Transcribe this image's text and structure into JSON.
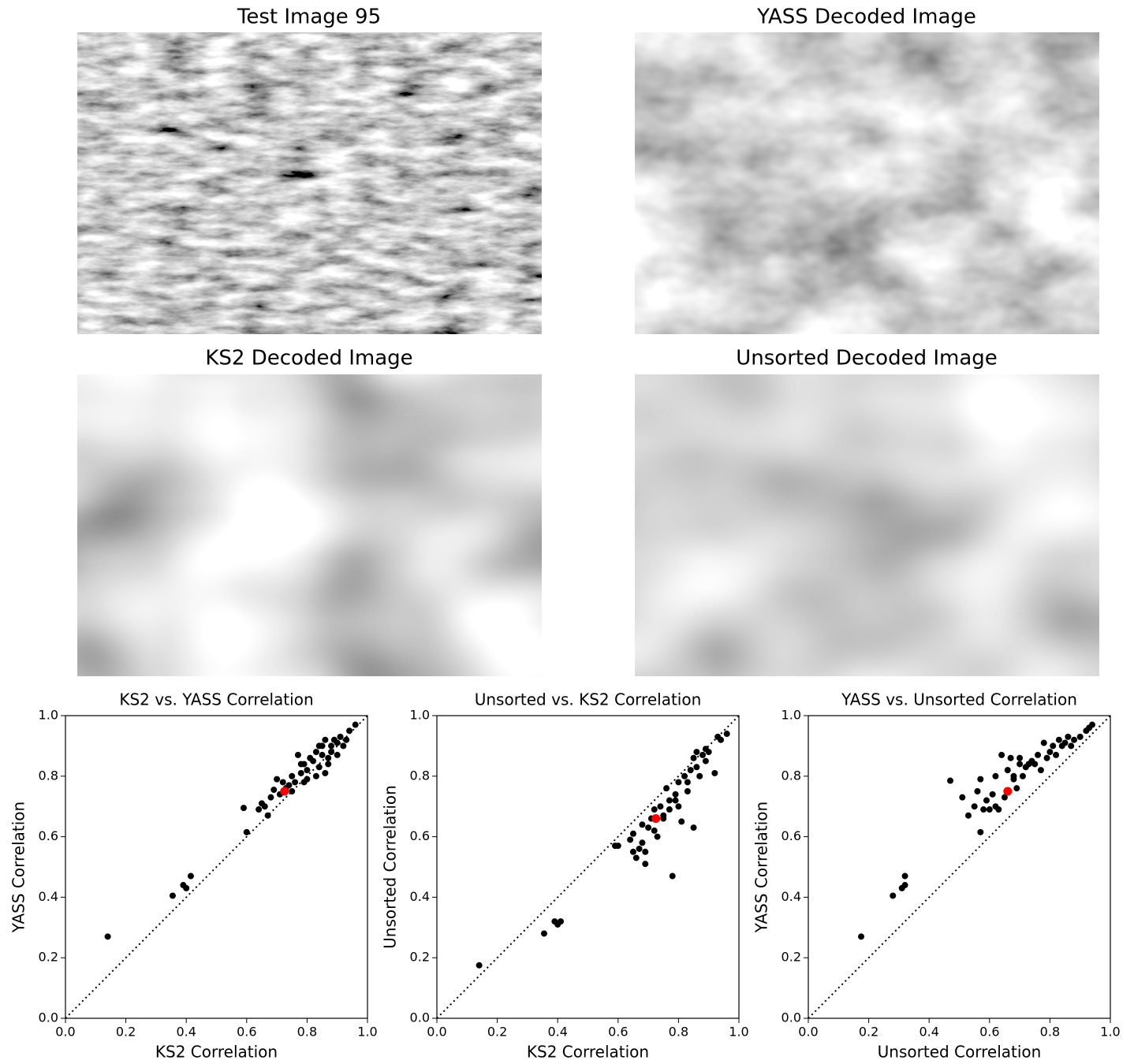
{
  "images": [
    {
      "title": "Test Image 95"
    },
    {
      "title": "YASS Decoded Image"
    },
    {
      "title": "KS2 Decoded Image"
    },
    {
      "title": "Unsorted Decoded Image"
    }
  ],
  "chart_data": [
    {
      "type": "scatter",
      "title": "KS2 vs. YASS Correlation",
      "xlabel": "KS2 Correlation",
      "ylabel": "YASS Correlation",
      "xlim": [
        0,
        1
      ],
      "ylim": [
        0,
        1
      ],
      "xticks": [
        {
          "value": 0,
          "label": "0.0"
        },
        0.2,
        0.4,
        0.6,
        0.8,
        {
          "value": 1,
          "label": "1.0"
        }
      ],
      "yticks": [
        {
          "value": 0,
          "label": "0.0"
        },
        0.2,
        0.4,
        0.6,
        0.8,
        {
          "value": 1,
          "label": "1.0"
        }
      ],
      "series": [
        {
          "color": "#000000",
          "x": [
            0.14,
            0.355,
            0.39,
            0.4,
            0.415,
            0.59,
            0.6,
            0.64,
            0.65,
            0.66,
            0.67,
            0.68,
            0.69,
            0.7,
            0.71,
            0.72,
            0.73,
            0.74,
            0.75,
            0.76,
            0.77,
            0.78,
            0.79,
            0.8,
            0.8,
            0.81,
            0.82,
            0.83,
            0.84,
            0.85,
            0.85,
            0.86,
            0.86,
            0.87,
            0.88,
            0.88,
            0.89,
            0.9,
            0.91,
            0.92,
            0.93,
            0.94,
            0.96,
            0.87,
            0.83,
            0.78,
            0.75,
            0.9,
            0.84,
            0.79
          ],
          "values": [
            0.27,
            0.405,
            0.44,
            0.43,
            0.47,
            0.695,
            0.615,
            0.69,
            0.71,
            0.7,
            0.67,
            0.73,
            0.755,
            0.79,
            0.74,
            0.78,
            0.76,
            0.77,
            0.8,
            0.78,
            0.87,
            0.81,
            0.84,
            0.79,
            0.82,
            0.86,
            0.85,
            0.88,
            0.83,
            0.87,
            0.9,
            0.81,
            0.92,
            0.86,
            0.9,
            0.88,
            0.92,
            0.91,
            0.93,
            0.9,
            0.92,
            0.95,
            0.97,
            0.84,
            0.8,
            0.84,
            0.75,
            0.87,
            0.9,
            0.78
          ]
        },
        {
          "color": "#ff0000",
          "x": [
            0.725
          ],
          "values": [
            0.75
          ]
        }
      ]
    },
    {
      "type": "scatter",
      "title": "Unsorted vs. KS2 Correlation",
      "xlabel": "KS2 Correlation",
      "ylabel": "Unsorted Correlation",
      "xlim": [
        0,
        1
      ],
      "ylim": [
        0,
        1
      ],
      "xticks": [
        {
          "value": 0,
          "label": "0.0"
        },
        0.2,
        0.4,
        0.6,
        0.8,
        {
          "value": 1,
          "label": "1.0"
        }
      ],
      "yticks": [
        {
          "value": 0,
          "label": "0.0"
        },
        0.2,
        0.4,
        0.6,
        0.8,
        {
          "value": 1,
          "label": "1.0"
        }
      ],
      "series": [
        {
          "color": "#000000",
          "x": [
            0.14,
            0.355,
            0.39,
            0.4,
            0.41,
            0.59,
            0.6,
            0.64,
            0.65,
            0.65,
            0.66,
            0.67,
            0.68,
            0.69,
            0.69,
            0.7,
            0.71,
            0.72,
            0.73,
            0.74,
            0.75,
            0.76,
            0.77,
            0.78,
            0.79,
            0.8,
            0.8,
            0.81,
            0.82,
            0.83,
            0.84,
            0.85,
            0.85,
            0.86,
            0.87,
            0.88,
            0.89,
            0.89,
            0.9,
            0.92,
            0.93,
            0.94,
            0.96,
            0.75,
            0.77,
            0.83,
            0.86,
            0.79,
            0.72,
            0.68
          ],
          "values": [
            0.175,
            0.28,
            0.32,
            0.31,
            0.32,
            0.57,
            0.57,
            0.59,
            0.55,
            0.61,
            0.53,
            0.56,
            0.64,
            0.55,
            0.51,
            0.63,
            0.66,
            0.69,
            0.6,
            0.7,
            0.67,
            0.76,
            0.72,
            0.47,
            0.74,
            0.7,
            0.78,
            0.65,
            0.8,
            0.75,
            0.82,
            0.63,
            0.86,
            0.83,
            0.8,
            0.87,
            0.85,
            0.89,
            0.88,
            0.81,
            0.93,
            0.92,
            0.94,
            0.66,
            0.69,
            0.78,
            0.88,
            0.72,
            0.62,
            0.58
          ]
        },
        {
          "color": "#ff0000",
          "x": [
            0.725
          ],
          "values": [
            0.66
          ]
        }
      ]
    },
    {
      "type": "scatter",
      "title": "YASS vs. Unsorted Correlation",
      "xlabel": "Unsorted Correlation",
      "ylabel": "YASS Correlation",
      "xlim": [
        0,
        1
      ],
      "ylim": [
        0,
        1
      ],
      "xticks": [
        {
          "value": 0,
          "label": "0.0"
        },
        0.2,
        0.4,
        0.6,
        0.8,
        {
          "value": 1,
          "label": "1.0"
        }
      ],
      "yticks": [
        {
          "value": 0,
          "label": "0.0"
        },
        0.2,
        0.4,
        0.6,
        0.8,
        {
          "value": 1,
          "label": "1.0"
        }
      ],
      "series": [
        {
          "color": "#000000",
          "x": [
            0.175,
            0.28,
            0.31,
            0.32,
            0.32,
            0.47,
            0.51,
            0.53,
            0.55,
            0.56,
            0.57,
            0.57,
            0.58,
            0.59,
            0.6,
            0.61,
            0.62,
            0.63,
            0.64,
            0.65,
            0.66,
            0.67,
            0.68,
            0.69,
            0.7,
            0.7,
            0.71,
            0.72,
            0.74,
            0.75,
            0.76,
            0.77,
            0.78,
            0.79,
            0.8,
            0.81,
            0.82,
            0.83,
            0.84,
            0.85,
            0.86,
            0.87,
            0.88,
            0.9,
            0.92,
            0.94,
            0.93,
            0.73,
            0.62,
            0.68
          ],
          "values": [
            0.27,
            0.405,
            0.43,
            0.44,
            0.47,
            0.785,
            0.73,
            0.67,
            0.7,
            0.75,
            0.615,
            0.79,
            0.69,
            0.72,
            0.69,
            0.74,
            0.8,
            0.69,
            0.87,
            0.73,
            0.82,
            0.86,
            0.79,
            0.76,
            0.84,
            0.86,
            0.8,
            0.83,
            0.85,
            0.84,
            0.87,
            0.82,
            0.91,
            0.86,
            0.88,
            0.9,
            0.87,
            0.92,
            0.9,
            0.91,
            0.93,
            0.9,
            0.92,
            0.93,
            0.95,
            0.97,
            0.96,
            0.84,
            0.7,
            0.8
          ]
        },
        {
          "color": "#ff0000",
          "x": [
            0.66
          ],
          "values": [
            0.75
          ]
        }
      ]
    }
  ]
}
